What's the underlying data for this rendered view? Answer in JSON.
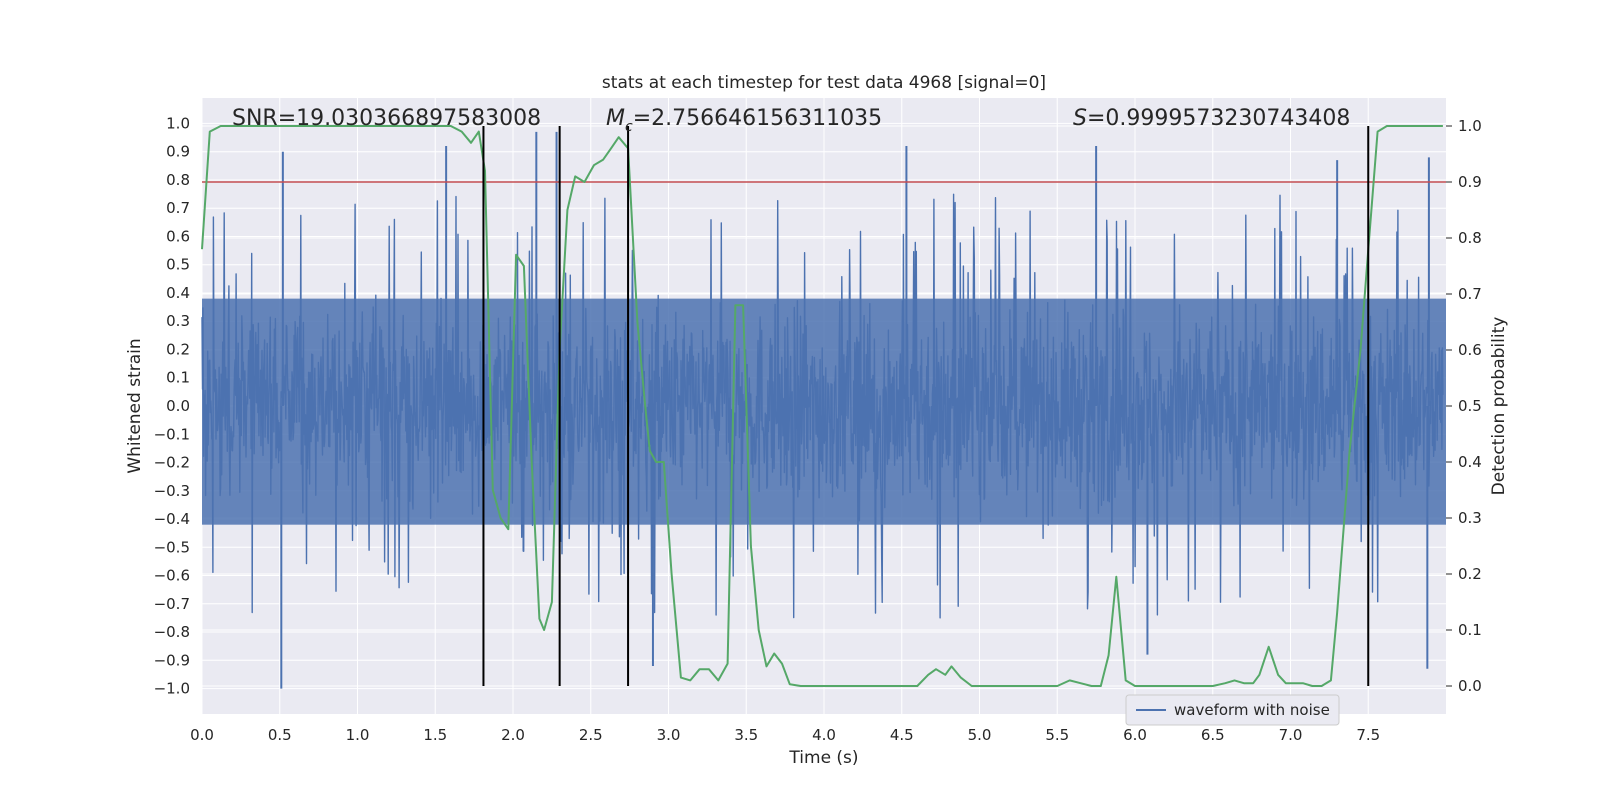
{
  "chart_data": {
    "type": "line",
    "title": "stats at each timestep for test data 4968 [signal=0]",
    "xlabel": "Time (s)",
    "ylabel": "Whitened strain",
    "y2label": "Detection probability",
    "xlim": [
      0.0,
      8.0
    ],
    "ylim": [
      -1.09,
      1.09
    ],
    "y2lim": [
      -0.05,
      1.05
    ],
    "grid": true,
    "x_ticks": [
      0.0,
      0.5,
      1.0,
      1.5,
      2.0,
      2.5,
      3.0,
      3.5,
      4.0,
      4.5,
      5.0,
      5.5,
      6.0,
      6.5,
      7.0,
      7.5
    ],
    "x_tick_labels": [
      "0.0",
      "0.5",
      "1.0",
      "1.5",
      "2.0",
      "2.5",
      "3.0",
      "3.5",
      "4.0",
      "4.5",
      "5.0",
      "5.5",
      "6.0",
      "6.5",
      "7.0",
      "7.5"
    ],
    "y_ticks": [
      1.0,
      0.9,
      0.8,
      0.7,
      0.6,
      0.5,
      0.4,
      0.3,
      0.2,
      0.1,
      0.0,
      -0.1,
      -0.2,
      -0.3,
      -0.4,
      -0.5,
      -0.6,
      -0.7,
      -0.8,
      -0.9,
      -1.0
    ],
    "y_tick_labels": [
      "1.0",
      "0.9",
      "0.8",
      "0.7",
      "0.6",
      "0.5",
      "0.4",
      "0.3",
      "0.2",
      "0.1",
      "0.0",
      "−0.1",
      "−0.2",
      "−0.3",
      "−0.4",
      "−0.5",
      "−0.6",
      "−0.7",
      "−0.8",
      "−0.9",
      "−1.0"
    ],
    "y2_ticks": [
      1.0,
      0.9,
      0.8,
      0.7,
      0.6,
      0.5,
      0.4,
      0.3,
      0.2,
      0.1,
      0.0
    ],
    "y2_tick_labels": [
      "1.0",
      "0.9",
      "0.8",
      "0.7",
      "0.6",
      "0.5",
      "0.4",
      "0.3",
      "0.2",
      "0.1",
      "0.0"
    ],
    "threshold": 0.9,
    "vlines_x": [
      1.81,
      2.3,
      2.74,
      7.5
    ],
    "annotations": {
      "snr_label": "SNR=19.030366897583008",
      "mc_symbol": "M",
      "mc_subscript": "c",
      "mc_value": "=2.756646156311035",
      "s_symbol": "S",
      "s_value": "=0.9999573230743408"
    },
    "legend": {
      "entries": [
        "waveform with noise"
      ],
      "placement": "lower-right"
    },
    "series": [
      {
        "name": "waveform with noise",
        "color": "#4c72b0",
        "description": "dense noisy whitened strain, approx 2048 samples spanning 0-8 s, mostly within -0.5..0.5 with occasional spikes",
        "core_envelope": [
          -0.42,
          0.38
        ],
        "peak_spikes": [
          {
            "x": 0.52,
            "y": 0.9
          },
          {
            "x": 0.51,
            "y": -1.0
          },
          {
            "x": 1.57,
            "y": 0.92
          },
          {
            "x": 2.15,
            "y": 0.97
          },
          {
            "x": 2.28,
            "y": 0.97
          },
          {
            "x": 2.9,
            "y": -0.92
          },
          {
            "x": 4.53,
            "y": 0.92
          },
          {
            "x": 5.75,
            "y": 0.92
          },
          {
            "x": 7.3,
            "y": 0.87
          },
          {
            "x": 7.89,
            "y": 0.88
          },
          {
            "x": 6.08,
            "y": -0.88
          },
          {
            "x": 7.88,
            "y": -0.93
          }
        ]
      },
      {
        "name": "detection probability",
        "color": "#55a868",
        "axis": "right",
        "x": [
          0.0,
          0.05,
          0.12,
          0.2,
          0.3,
          0.4,
          0.5,
          0.6,
          0.7,
          0.8,
          0.9,
          1.0,
          1.1,
          1.2,
          1.3,
          1.4,
          1.5,
          1.6,
          1.67,
          1.73,
          1.78,
          1.82,
          1.87,
          1.92,
          1.97,
          2.02,
          2.07,
          2.12,
          2.17,
          2.2,
          2.25,
          2.3,
          2.35,
          2.4,
          2.46,
          2.52,
          2.58,
          2.63,
          2.68,
          2.74,
          2.8,
          2.85,
          2.88,
          2.92,
          2.97,
          3.02,
          3.08,
          3.14,
          3.2,
          3.26,
          3.32,
          3.38,
          3.43,
          3.48,
          3.53,
          3.58,
          3.63,
          3.68,
          3.73,
          3.78,
          3.85,
          3.95,
          4.05,
          4.15,
          4.3,
          4.45,
          4.6,
          4.67,
          4.72,
          4.78,
          4.82,
          4.88,
          4.95,
          5.02,
          5.1,
          5.2,
          5.3,
          5.4,
          5.5,
          5.58,
          5.65,
          5.72,
          5.78,
          5.83,
          5.88,
          5.94,
          6.0,
          6.1,
          6.2,
          6.3,
          6.4,
          6.5,
          6.58,
          6.64,
          6.7,
          6.76,
          6.8,
          6.86,
          6.92,
          6.97,
          7.02,
          7.08,
          7.14,
          7.2,
          7.26,
          7.3,
          7.38,
          7.45,
          7.5,
          7.56,
          7.62,
          7.68,
          7.75,
          7.85,
          7.98
        ],
        "y": [
          0.78,
          0.99,
          1.0,
          1.0,
          1.0,
          1.0,
          1.0,
          1.0,
          1.0,
          1.0,
          1.0,
          1.0,
          1.0,
          1.0,
          1.0,
          1.0,
          1.0,
          1.0,
          0.99,
          0.97,
          0.99,
          0.92,
          0.35,
          0.3,
          0.28,
          0.77,
          0.75,
          0.4,
          0.12,
          0.1,
          0.15,
          0.6,
          0.85,
          0.91,
          0.9,
          0.93,
          0.94,
          0.96,
          0.98,
          0.96,
          0.65,
          0.5,
          0.42,
          0.4,
          0.4,
          0.2,
          0.015,
          0.01,
          0.03,
          0.03,
          0.01,
          0.04,
          0.68,
          0.68,
          0.25,
          0.1,
          0.035,
          0.058,
          0.04,
          0.003,
          0.0,
          0.0,
          0.0,
          0.0,
          0.0,
          0.0,
          0.0,
          0.02,
          0.03,
          0.02,
          0.035,
          0.015,
          0.0,
          0.0,
          0.0,
          0.0,
          0.0,
          0.0,
          0.0,
          0.01,
          0.005,
          0.0,
          0.0,
          0.055,
          0.195,
          0.01,
          0.0,
          0.0,
          0.0,
          0.0,
          0.0,
          0.0,
          0.005,
          0.01,
          0.005,
          0.005,
          0.02,
          0.07,
          0.02,
          0.005,
          0.005,
          0.005,
          0.0,
          0.0,
          0.01,
          0.13,
          0.42,
          0.6,
          0.78,
          0.99,
          1.0,
          1.0,
          1.0,
          1.0,
          1.0
        ]
      },
      {
        "name": "threshold",
        "color": "#c44e52",
        "axis": "right",
        "value": 0.9
      }
    ]
  },
  "colors": {
    "plot_background": "#eaeaf2",
    "grid": "#ffffff",
    "vline": "#000000",
    "legend_background": "#eaeaf2",
    "legend_border": "#cccccc"
  }
}
